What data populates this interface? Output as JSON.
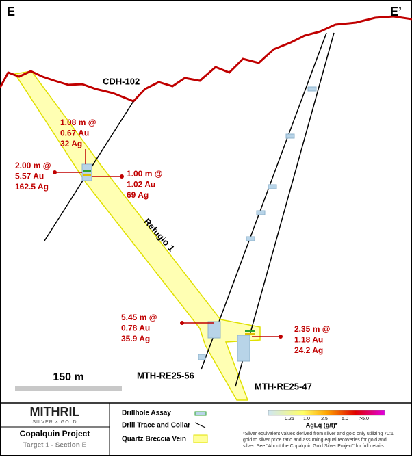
{
  "section": {
    "left_label": "E",
    "right_label": "E’",
    "vein_name": "Refugio 1",
    "scale": "150 m"
  },
  "holes": [
    {
      "name": "CDH-102"
    },
    {
      "name": "MTH-RE25-56"
    },
    {
      "name": "MTH-RE25-47"
    }
  ],
  "intercepts": [
    {
      "lines": [
        "1.08 m @",
        "0.67 Au",
        "32 Ag"
      ]
    },
    {
      "lines": [
        "2.00 m @",
        "5.57 Au",
        "162.5 Ag"
      ]
    },
    {
      "lines": [
        "1.00 m @",
        "1.02 Au",
        "69 Ag"
      ]
    },
    {
      "lines": [
        "5.45 m @",
        "0.78 Au",
        "35.9 Ag"
      ]
    },
    {
      "lines": [
        "2.35 m @",
        "1.18 Au",
        "24.2 Ag"
      ]
    }
  ],
  "footer": {
    "logo": "MITHRIL",
    "tagline": "SILVER × GOLD",
    "project": "Copalquin Project",
    "subtitle": "Target 1 - Section E",
    "legend": [
      "Drillhole Assay",
      "Drill Trace and Collar",
      "Quartz Breccia Vein"
    ],
    "scale_labels": [
      "0.25",
      "1.0",
      "2.5",
      "5.0",
      ">5.0"
    ],
    "scale_title": "AgEq (g/t)*",
    "footnote": [
      "*Silver equivalent values derived from silver and gold only utilizing 70:1",
      "gold to silver price ratio and assuming equal recoveries for gold and",
      "silver. See \"About the Copalquin Gold Silver Project\" for full details."
    ]
  }
}
